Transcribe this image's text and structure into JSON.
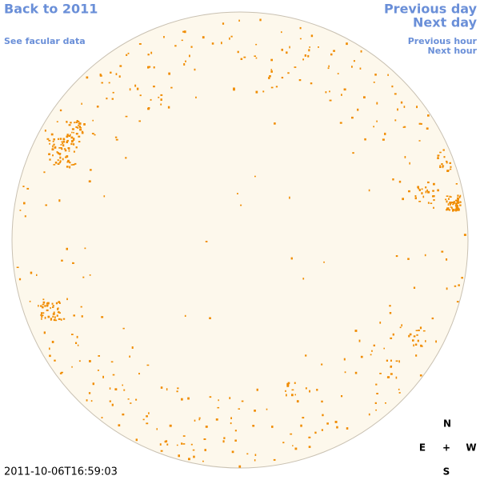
{
  "navigation": {
    "back": "Back to 2011",
    "facular_data": "See facular data",
    "previous_day": "Previous day",
    "next_day": "Next day",
    "previous_hour": "Previous hour",
    "next_hour": "Next hour"
  },
  "compass": {
    "north": "N",
    "east": "E",
    "center": "+",
    "west": "W",
    "south": "S"
  },
  "timestamp": "2011-10-06T16:59:03"
}
